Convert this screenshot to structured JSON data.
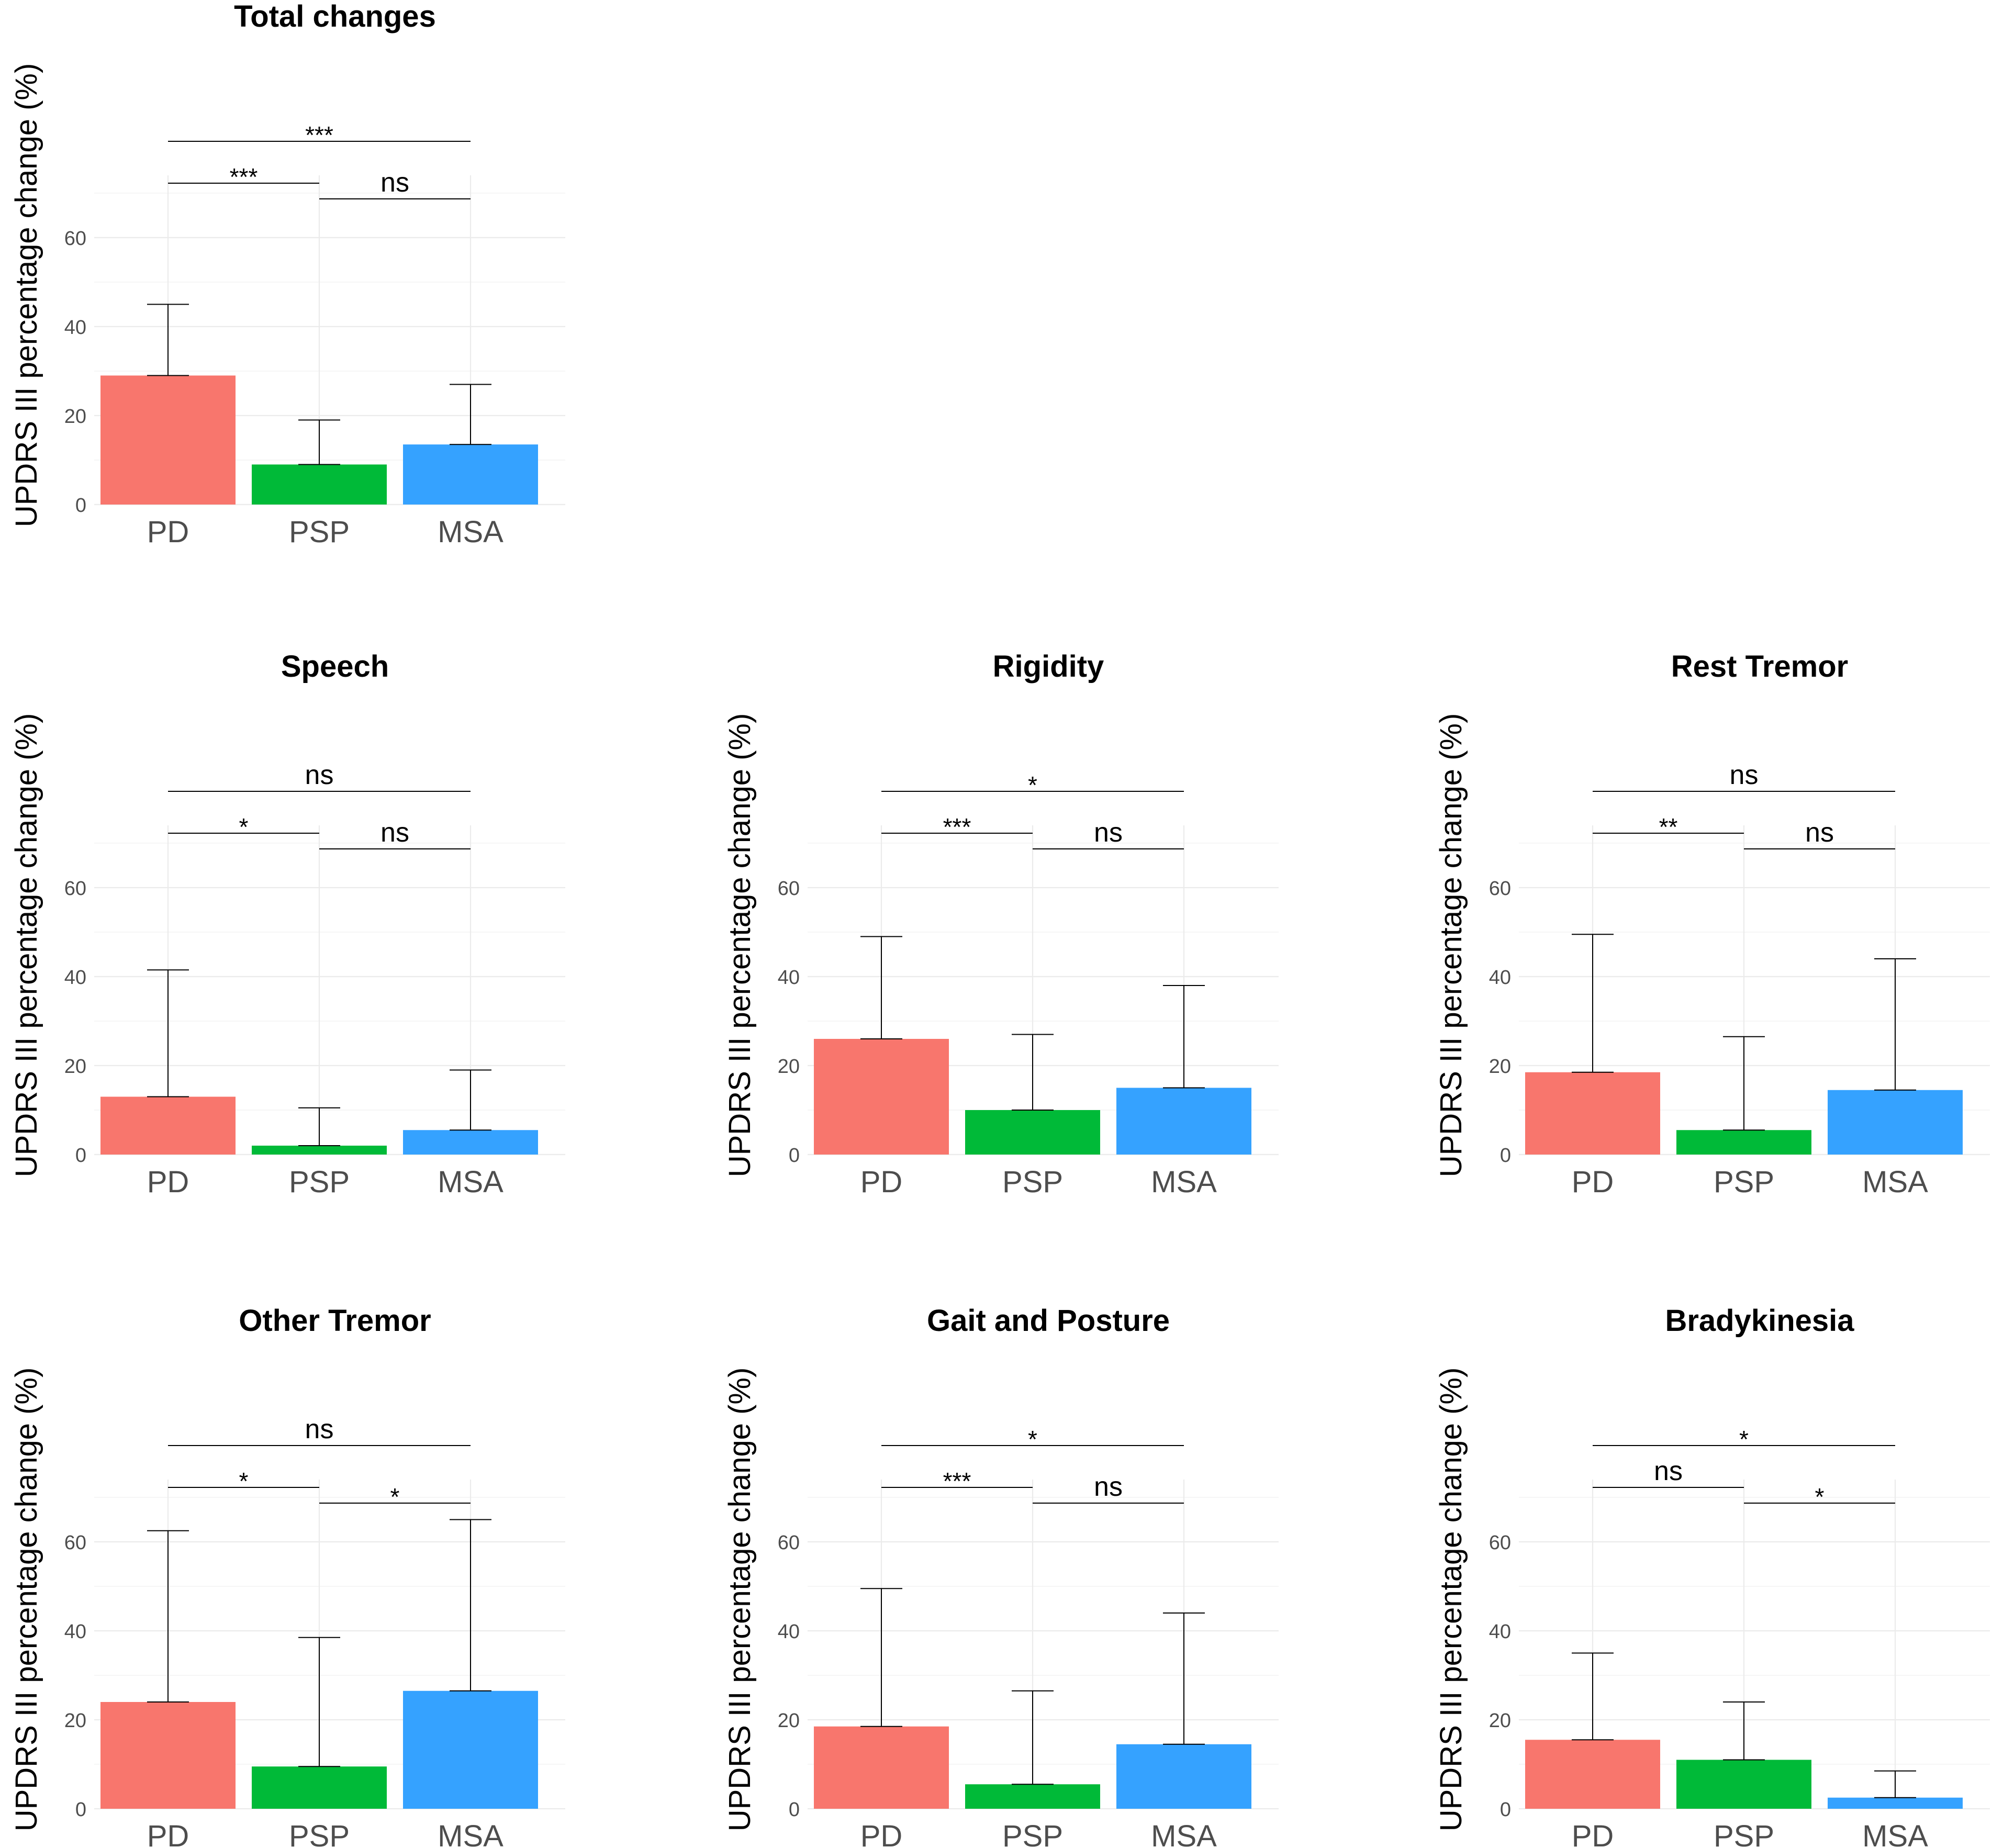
{
  "figure": {
    "ylabel": "UPDRS III percentage change (%)",
    "categories": [
      "PD",
      "PSP",
      "MSA"
    ],
    "colors": {
      "PD": "#F8766D",
      "PSP": "#00BA38",
      "MSA": "#35A2FF"
    }
  },
  "chart_data": [
    {
      "type": "bar",
      "title": "Total changes",
      "categories": [
        "PD",
        "PSP",
        "MSA"
      ],
      "values": [
        29,
        9,
        13.5
      ],
      "error_upper": [
        45,
        19,
        27
      ],
      "ylabel": "UPDRS III percentage change (%)",
      "yticks": [
        0,
        20,
        40,
        60
      ],
      "ylim": [
        0,
        74
      ],
      "grid": true,
      "significance": [
        {
          "from": "PD",
          "to": "PSP",
          "label": "***"
        },
        {
          "from": "PSP",
          "to": "MSA",
          "label": "ns"
        },
        {
          "from": "PD",
          "to": "MSA",
          "label": "***"
        }
      ]
    },
    {
      "type": "bar",
      "title": "Speech",
      "categories": [
        "PD",
        "PSP",
        "MSA"
      ],
      "values": [
        13,
        2,
        5.5
      ],
      "error_upper": [
        41.5,
        10.5,
        19
      ],
      "ylabel": "UPDRS III percentage change (%)",
      "yticks": [
        0,
        20,
        40,
        60
      ],
      "ylim": [
        0,
        74
      ],
      "grid": true,
      "significance": [
        {
          "from": "PD",
          "to": "PSP",
          "label": "*"
        },
        {
          "from": "PSP",
          "to": "MSA",
          "label": "ns"
        },
        {
          "from": "PD",
          "to": "MSA",
          "label": "ns"
        }
      ]
    },
    {
      "type": "bar",
      "title": "Rigidity",
      "categories": [
        "PD",
        "PSP",
        "MSA"
      ],
      "values": [
        26,
        10,
        15
      ],
      "error_upper": [
        49,
        27,
        38
      ],
      "ylabel": "UPDRS III percentage change (%)",
      "yticks": [
        0,
        20,
        40,
        60
      ],
      "ylim": [
        0,
        74
      ],
      "grid": true,
      "significance": [
        {
          "from": "PD",
          "to": "PSP",
          "label": "***"
        },
        {
          "from": "PSP",
          "to": "MSA",
          "label": "ns"
        },
        {
          "from": "PD",
          "to": "MSA",
          "label": "*"
        }
      ]
    },
    {
      "type": "bar",
      "title": "Rest Tremor",
      "categories": [
        "PD",
        "PSP",
        "MSA"
      ],
      "values": [
        18.5,
        5.5,
        14.5
      ],
      "error_upper": [
        49.5,
        26.5,
        44
      ],
      "ylabel": "UPDRS III percentage change (%)",
      "yticks": [
        0,
        20,
        40,
        60
      ],
      "ylim": [
        0,
        74
      ],
      "grid": true,
      "significance": [
        {
          "from": "PD",
          "to": "PSP",
          "label": "**"
        },
        {
          "from": "PSP",
          "to": "MSA",
          "label": "ns"
        },
        {
          "from": "PD",
          "to": "MSA",
          "label": "ns"
        }
      ]
    },
    {
      "type": "bar",
      "title": "Other Tremor",
      "categories": [
        "PD",
        "PSP",
        "MSA"
      ],
      "values": [
        24,
        9.5,
        26.5
      ],
      "error_upper": [
        62.5,
        38.5,
        65
      ],
      "ylabel": "UPDRS III percentage change (%)",
      "yticks": [
        0,
        20,
        40,
        60
      ],
      "ylim": [
        0,
        74
      ],
      "grid": true,
      "significance": [
        {
          "from": "PD",
          "to": "PSP",
          "label": "*"
        },
        {
          "from": "PSP",
          "to": "MSA",
          "label": "*"
        },
        {
          "from": "PD",
          "to": "MSA",
          "label": "ns"
        }
      ]
    },
    {
      "type": "bar",
      "title": "Gait and Posture",
      "categories": [
        "PD",
        "PSP",
        "MSA"
      ],
      "values": [
        18.5,
        5.5,
        14.5
      ],
      "error_upper": [
        49.5,
        26.5,
        44
      ],
      "ylabel": "UPDRS III percentage change (%)",
      "yticks": [
        0,
        20,
        40,
        60
      ],
      "ylim": [
        0,
        74
      ],
      "grid": true,
      "significance": [
        {
          "from": "PD",
          "to": "PSP",
          "label": "***"
        },
        {
          "from": "PSP",
          "to": "MSA",
          "label": "ns"
        },
        {
          "from": "PD",
          "to": "MSA",
          "label": "*"
        }
      ]
    },
    {
      "type": "bar",
      "title": "Bradykinesia",
      "categories": [
        "PD",
        "PSP",
        "MSA"
      ],
      "values": [
        15.5,
        11,
        2.5
      ],
      "error_upper": [
        35,
        24,
        8.5
      ],
      "ylabel": "UPDRS III percentage change (%)",
      "yticks": [
        0,
        20,
        40,
        60
      ],
      "ylim": [
        0,
        74
      ],
      "grid": true,
      "significance": [
        {
          "from": "PD",
          "to": "PSP",
          "label": "ns"
        },
        {
          "from": "PSP",
          "to": "MSA",
          "label": "*"
        },
        {
          "from": "PD",
          "to": "MSA",
          "label": "*"
        }
      ]
    }
  ]
}
